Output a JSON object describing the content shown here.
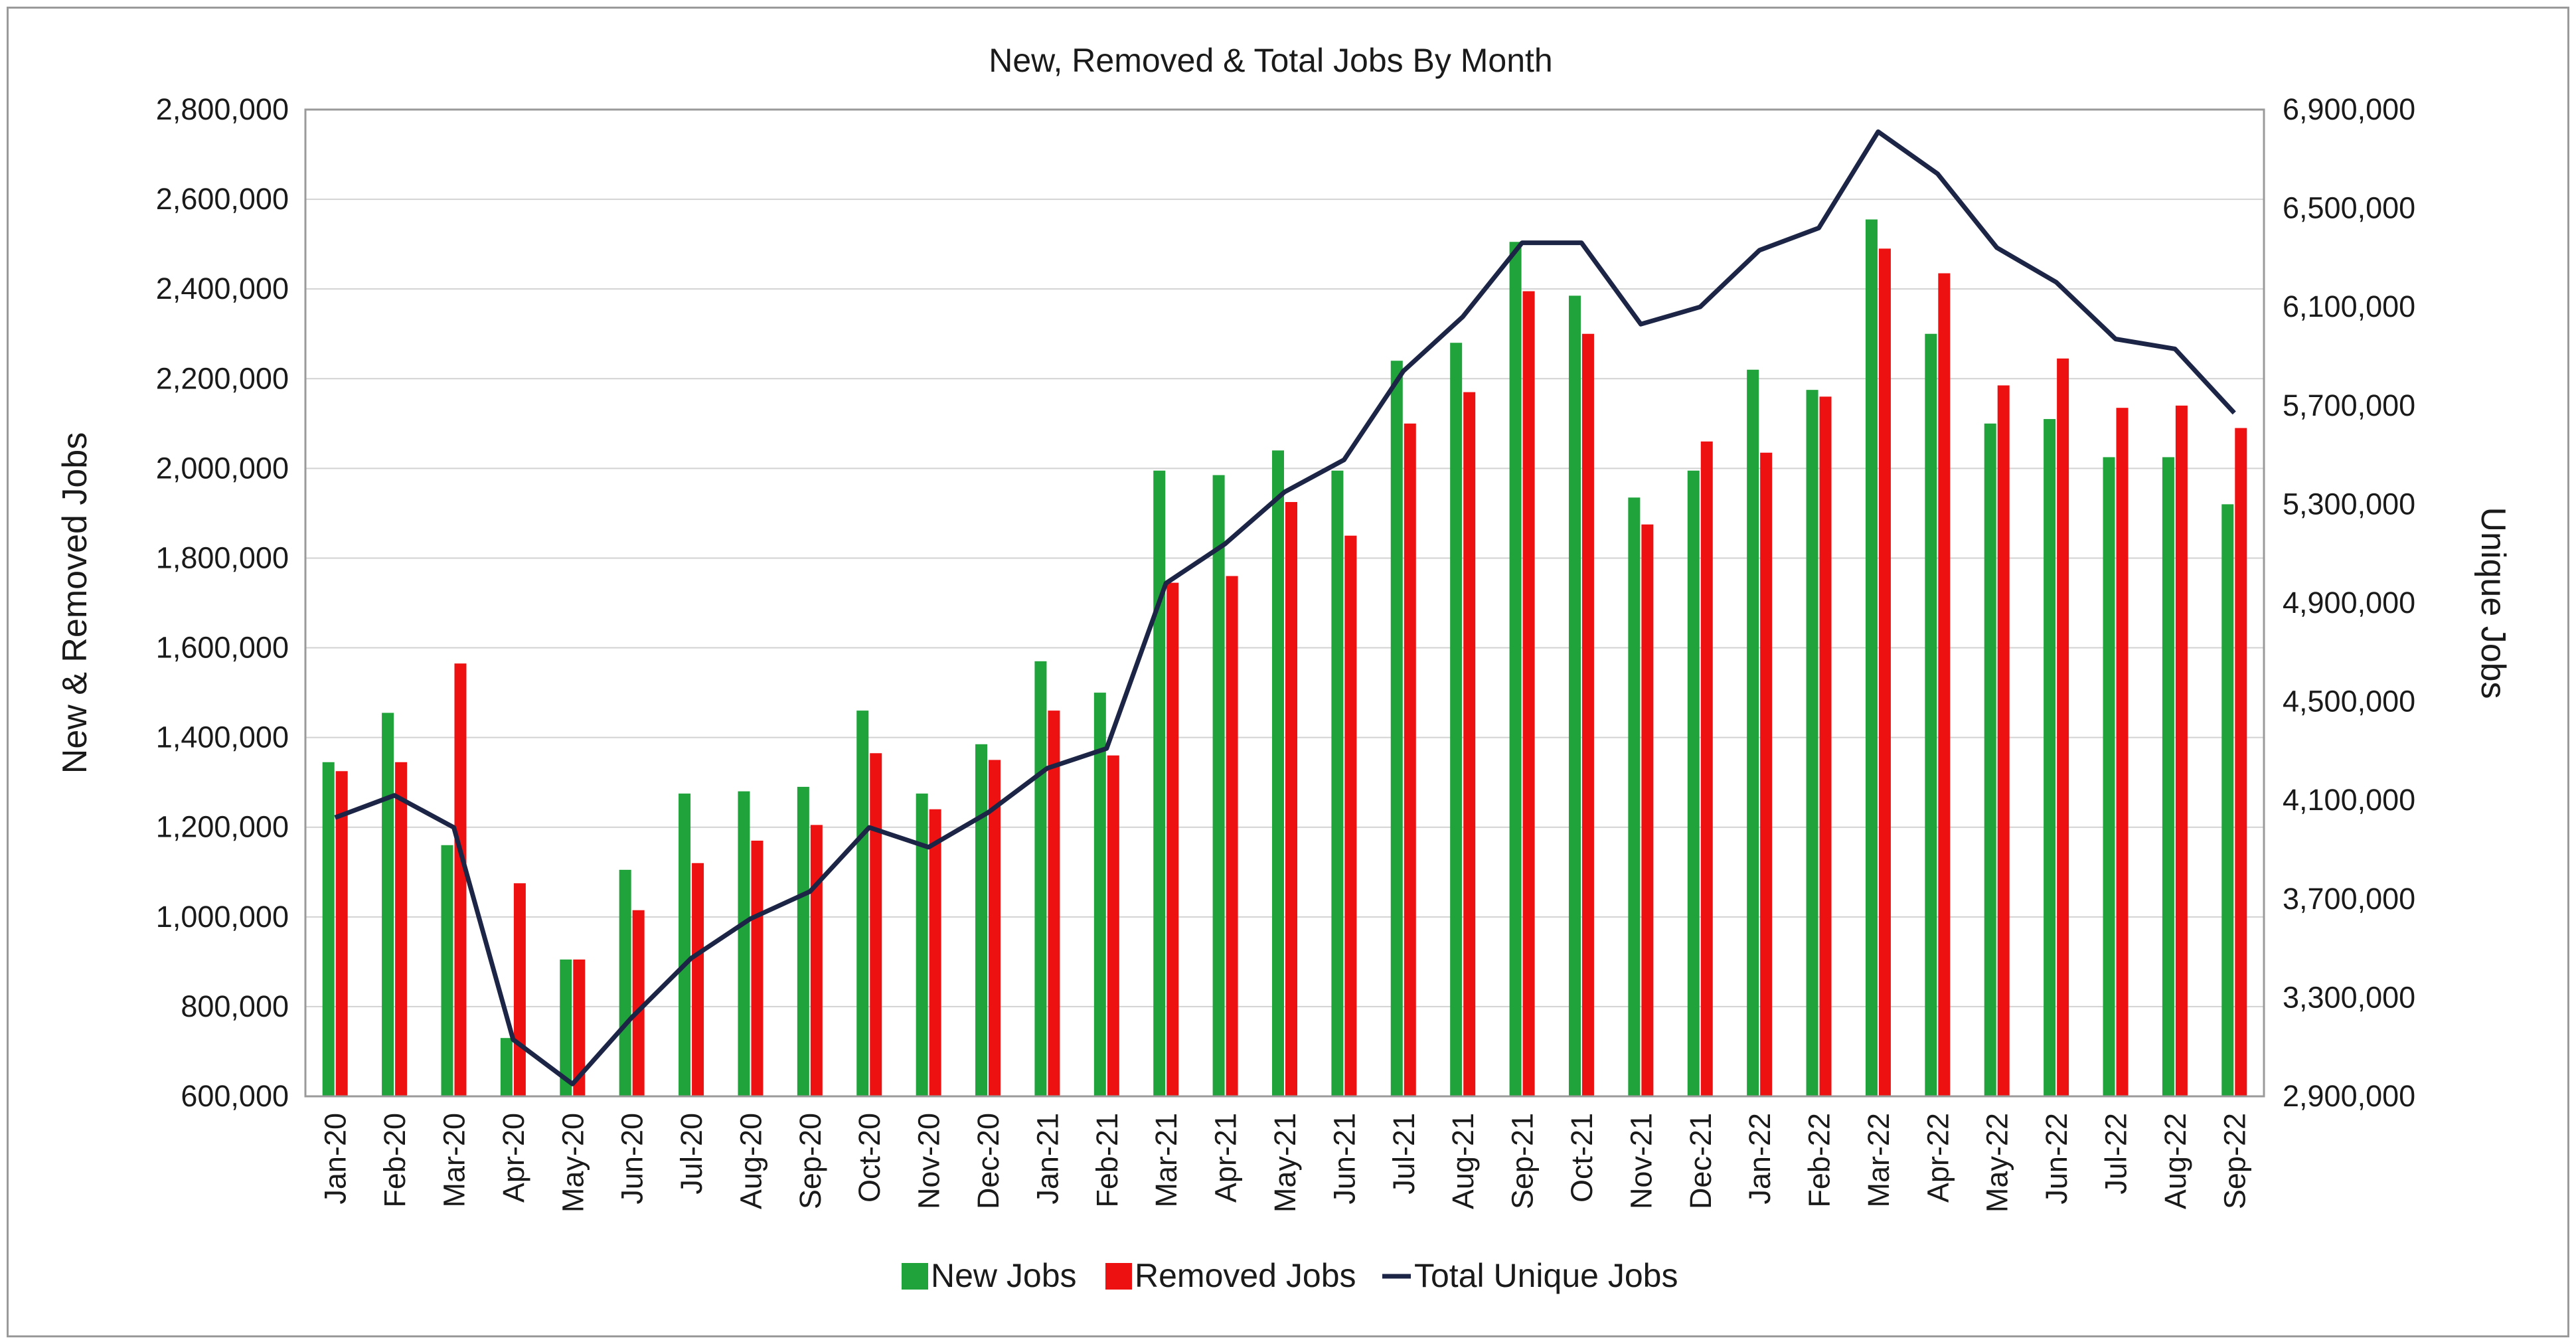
{
  "chart_data": {
    "type": "bar",
    "title": "New, Removed & Total Jobs By Month",
    "ylabel": "New & Removed Jobs",
    "y2label": "Unique Jobs",
    "ylim": [
      600000,
      2800000
    ],
    "y2lim": [
      2900000,
      6900000
    ],
    "yticks": [
      "600,000",
      "800,000",
      "1,000,000",
      "1,200,000",
      "1,400,000",
      "1,600,000",
      "1,800,000",
      "2,000,000",
      "2,200,000",
      "2,400,000",
      "2,600,000",
      "2,800,000"
    ],
    "y2ticks": [
      "2,900,000",
      "3,300,000",
      "3,700,000",
      "4,100,000",
      "4,500,000",
      "4,900,000",
      "5,300,000",
      "5,700,000",
      "6,100,000",
      "6,500,000",
      "6,900,000"
    ],
    "categories": [
      "Jan-20",
      "Feb-20",
      "Mar-20",
      "Apr-20",
      "May-20",
      "Jun-20",
      "Jul-20",
      "Aug-20",
      "Sep-20",
      "Oct-20",
      "Nov-20",
      "Dec-20",
      "Jan-21",
      "Feb-21",
      "Mar-21",
      "Apr-21",
      "May-21",
      "Jun-21",
      "Jul-21",
      "Aug-21",
      "Sep-21",
      "Oct-21",
      "Nov-21",
      "Dec-21",
      "Jan-22",
      "Feb-22",
      "Mar-22",
      "Apr-22",
      "May-22",
      "Jun-22",
      "Jul-22",
      "Aug-22",
      "Sep-22"
    ],
    "series": [
      {
        "name": "New Jobs",
        "color": "#1fa33a",
        "kind": "bar",
        "values": [
          1345000,
          1455000,
          1160000,
          730000,
          905000,
          1105000,
          1275000,
          1280000,
          1290000,
          1460000,
          1275000,
          1385000,
          1570000,
          1500000,
          1995000,
          1985000,
          2040000,
          1995000,
          2240000,
          2280000,
          2505000,
          2385000,
          1935000,
          1995000,
          2220000,
          2175000,
          2555000,
          2300000,
          2100000,
          2110000,
          2025000,
          2025000,
          1920000
        ]
      },
      {
        "name": "Removed Jobs",
        "color": "#ee1111",
        "kind": "bar",
        "values": [
          1325000,
          1345000,
          1565000,
          1075000,
          905000,
          1015000,
          1120000,
          1170000,
          1205000,
          1365000,
          1240000,
          1350000,
          1460000,
          1360000,
          1745000,
          1760000,
          1925000,
          1850000,
          2100000,
          2170000,
          2395000,
          2300000,
          1875000,
          2060000,
          2035000,
          2160000,
          2490000,
          2435000,
          2185000,
          2245000,
          2135000,
          2140000,
          2090000
        ]
      },
      {
        "name": "Total Unique Jobs",
        "color": "#1c2545",
        "kind": "line",
        "axis": "right",
        "values": [
          4030000,
          4120000,
          3990000,
          3130000,
          2950000,
          3220000,
          3460000,
          3620000,
          3730000,
          3990000,
          3910000,
          4050000,
          4230000,
          4310000,
          4980000,
          5140000,
          5350000,
          5480000,
          5840000,
          6060000,
          6360000,
          6360000,
          6030000,
          6100000,
          6330000,
          6420000,
          6810000,
          6640000,
          6340000,
          6200000,
          5970000,
          5930000,
          5670000
        ]
      }
    ],
    "grid": true,
    "legend": "bottom-center"
  }
}
